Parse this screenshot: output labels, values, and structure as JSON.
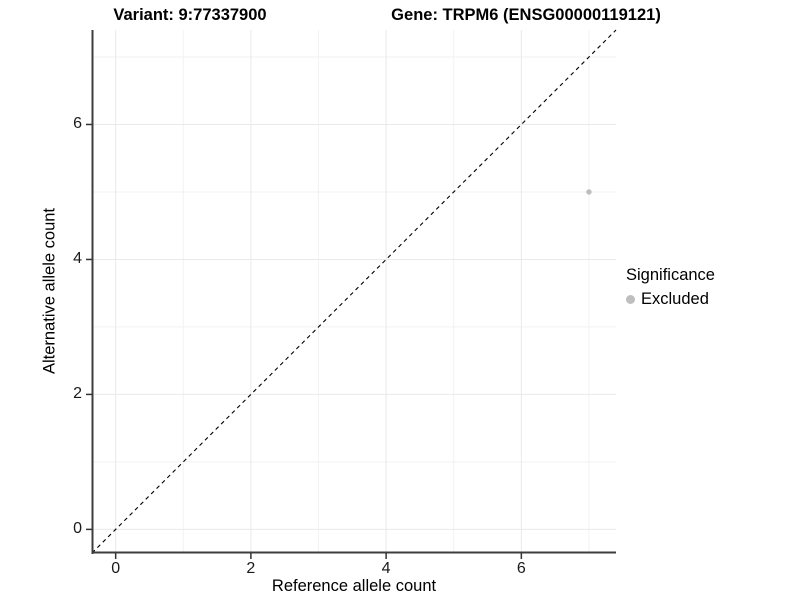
{
  "header": {
    "title_left": "Variant: 9:77337900",
    "title_right": "Gene: TRPM6 (ENSG00000119121)"
  },
  "chart_data": {
    "type": "scatter",
    "xlabel": "Reference allele count",
    "ylabel": "Alternative allele count",
    "xlim": [
      -0.35,
      7.4
    ],
    "ylim": [
      -0.35,
      7.4
    ],
    "x_major_ticks": [
      0,
      2,
      4,
      6
    ],
    "y_major_ticks": [
      0,
      2,
      4,
      6
    ],
    "x_minor_ticks": [
      1,
      3,
      5,
      7
    ],
    "y_minor_ticks": [
      1,
      3,
      5,
      7
    ],
    "grid": true,
    "series": [
      {
        "name": "Excluded",
        "color": "#bebebe",
        "points": [
          {
            "x": 7,
            "y": 5
          }
        ]
      }
    ],
    "reference_line": {
      "slope": 1,
      "intercept": 0,
      "style": "dashed",
      "color": "#000000"
    },
    "legend": {
      "title": "Significance",
      "position": "right",
      "entries": [
        {
          "label": "Excluded",
          "color": "#bebebe",
          "marker": "circle-icon"
        }
      ]
    }
  },
  "theme": {
    "background": "#ffffff",
    "axis_line_color": "#3d3d3d",
    "tick_mark_color": "#333333",
    "grid_major_color": "#e9e9e9",
    "grid_minor_color": "#f2f2f2",
    "text_color": "#000000"
  }
}
